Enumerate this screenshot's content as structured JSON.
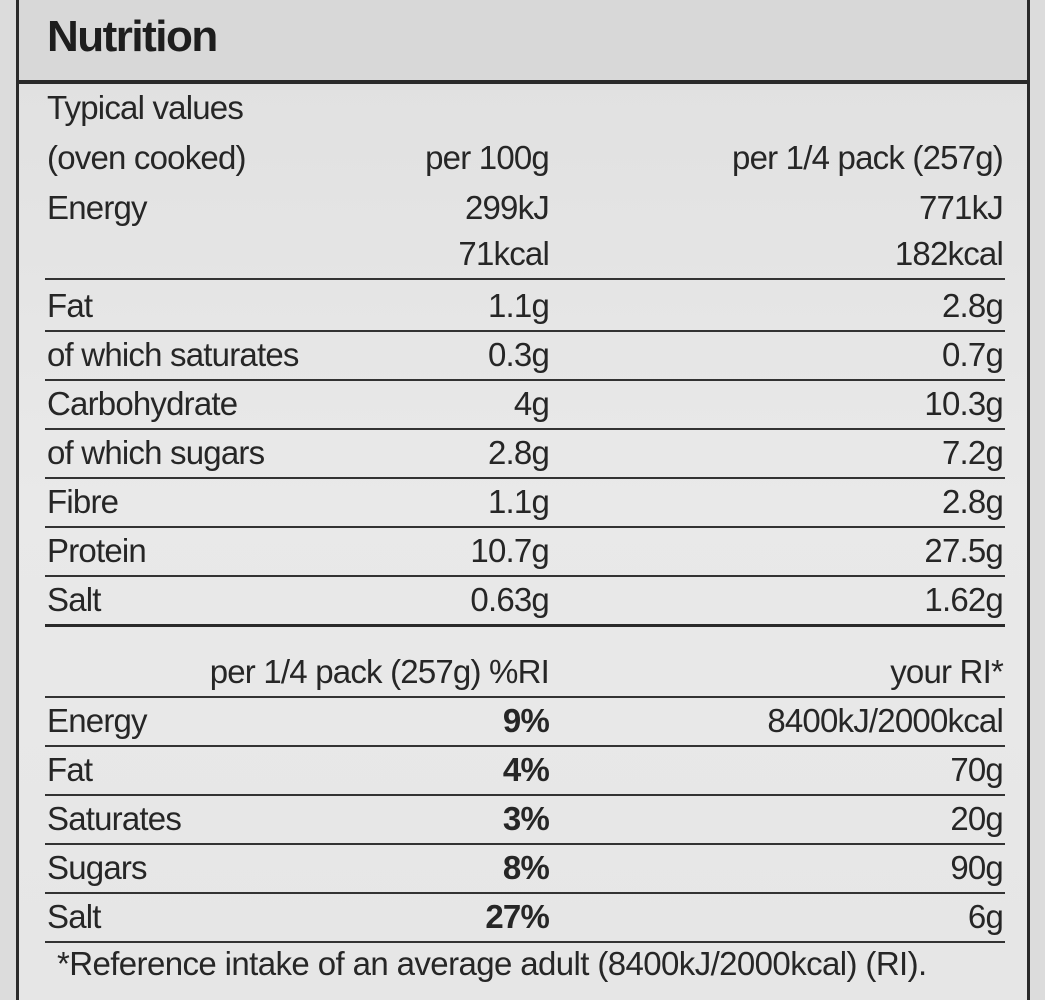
{
  "title": "Nutrition",
  "header": {
    "typical_values": "Typical values",
    "oven_cooked": "(oven cooked)",
    "per_100g": "per 100g",
    "per_quarter_pack": "per 1/4 pack (257g)"
  },
  "energy": {
    "label": "Energy",
    "kj_100g": "299kJ",
    "kj_pack": "771kJ",
    "kcal_100g": "71kcal",
    "kcal_pack": "182kcal"
  },
  "nutrients": [
    {
      "name": "Fat",
      "per_100g": "1.1g",
      "per_pack": "2.8g"
    },
    {
      "name": "of which saturates",
      "per_100g": "0.3g",
      "per_pack": "0.7g"
    },
    {
      "name": "Carbohydrate",
      "per_100g": "4g",
      "per_pack": "10.3g"
    },
    {
      "name": "of which sugars",
      "per_100g": "2.8g",
      "per_pack": "7.2g"
    },
    {
      "name": "Fibre",
      "per_100g": "1.1g",
      "per_pack": "2.8g"
    },
    {
      "name": "Protein",
      "per_100g": "10.7g",
      "per_pack": "27.5g"
    },
    {
      "name": "Salt",
      "per_100g": "0.63g",
      "per_pack": "1.62g"
    }
  ],
  "ri_header": {
    "pack_pct": "per 1/4 pack (257g) %RI",
    "your_ri": "your RI*"
  },
  "ri_rows": [
    {
      "name": "Energy",
      "pct": "9%",
      "ri": "8400kJ/2000kcal"
    },
    {
      "name": "Fat",
      "pct": "4%",
      "ri": "70g"
    },
    {
      "name": "Saturates",
      "pct": "3%",
      "ri": "20g"
    },
    {
      "name": "Sugars",
      "pct": "8%",
      "ri": "90g"
    },
    {
      "name": "Salt",
      "pct": "27%",
      "ri": "6g"
    }
  ],
  "footnote": "*Reference intake of an average adult (8400kJ/2000kcal) (RI)."
}
